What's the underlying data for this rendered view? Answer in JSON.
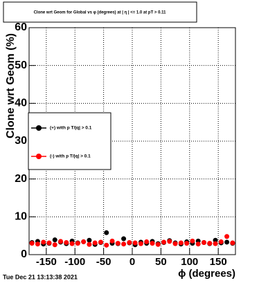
{
  "chart_data": {
    "type": "scatter",
    "title": "Clone wrt Geom for Global vs φ (degrees) at | η | <= 1.0 at pT > 0.11",
    "x_label": "ϕ (degrees)",
    "y_label": "Clone wrt Geom (%)",
    "timestamp": "Tue Dec 21 13:13:38 2021",
    "xlim": [
      -180,
      180
    ],
    "xticks": [
      -150,
      -100,
      -50,
      0,
      50,
      100,
      150
    ],
    "ylim": [
      0,
      60
    ],
    "yticks": [
      0,
      10,
      20,
      30,
      40,
      50,
      60
    ],
    "grid": true,
    "x": [
      -175,
      -165,
      -155,
      -145,
      -135,
      -125,
      -115,
      -105,
      -95,
      -85,
      -75,
      -65,
      -55,
      -45,
      -35,
      -25,
      -15,
      -5,
      5,
      15,
      25,
      35,
      45,
      55,
      65,
      75,
      85,
      95,
      105,
      115,
      125,
      135,
      145,
      155,
      165,
      175
    ],
    "series": [
      {
        "name": "(+) with p T/|q| > 0.1",
        "color": "#000000",
        "values": [
          3.2,
          3.5,
          2.8,
          3.0,
          3.9,
          3.3,
          2.9,
          3.6,
          3.1,
          3.4,
          3.8,
          2.7,
          3.2,
          5.8,
          3.0,
          2.9,
          4.2,
          3.1,
          2.6,
          3.3,
          3.0,
          3.5,
          2.9,
          3.2,
          3.7,
          3.1,
          2.8,
          3.4,
          3.0,
          3.6,
          3.2,
          2.9,
          3.8,
          3.1,
          3.3,
          3.0
        ]
      },
      {
        "name": "(-) with p T/|q| > 0.1",
        "color": "#ff0000",
        "values": [
          3.0,
          2.8,
          3.3,
          3.1,
          2.6,
          3.5,
          3.2,
          2.9,
          3.0,
          3.4,
          2.7,
          3.1,
          3.3,
          2.5,
          3.6,
          3.0,
          2.8,
          3.2,
          3.1,
          2.9,
          3.4,
          3.0,
          2.7,
          3.3,
          3.5,
          2.9,
          3.1,
          3.0,
          3.6,
          2.8,
          3.2,
          3.0,
          2.9,
          3.4,
          4.8,
          3.1
        ]
      }
    ]
  }
}
